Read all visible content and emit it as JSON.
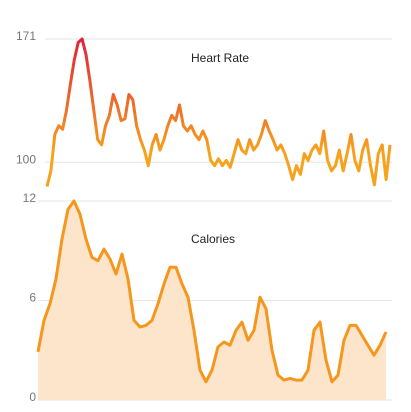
{
  "chart_data": [
    {
      "type": "line",
      "title": "Heart Rate",
      "values": [
        86,
        95,
        116,
        121,
        119,
        130,
        145,
        159,
        169,
        171,
        162,
        147,
        130,
        113,
        110,
        121,
        127,
        139,
        133,
        124,
        125,
        139,
        136,
        121,
        113,
        107,
        98,
        110,
        116,
        107,
        113,
        121,
        127,
        124,
        133,
        121,
        118,
        121,
        116,
        113,
        118,
        113,
        101,
        98,
        102,
        98,
        101,
        97,
        105,
        113,
        107,
        105,
        113,
        107,
        110,
        116,
        124,
        118,
        113,
        107,
        110,
        105,
        98,
        90,
        98,
        93,
        105,
        101,
        107,
        110,
        105,
        118,
        101,
        95,
        98,
        107,
        95,
        105,
        116,
        101,
        95,
        107,
        113,
        98,
        87,
        105,
        110,
        90,
        110
      ],
      "color_high": "#e0233c",
      "color_low": "#f7a21d",
      "ylim": [
        84,
        171
      ],
      "yticks": [
        100,
        171
      ],
      "grid": true
    },
    {
      "type": "area",
      "title": "Calories",
      "values": [
        2.9,
        4.8,
        5.8,
        7.3,
        9.7,
        11.5,
        12,
        11.2,
        9.7,
        8.6,
        8.4,
        9.1,
        8.5,
        7.6,
        8.8,
        7.3,
        4.8,
        4.4,
        4.5,
        4.8,
        5.8,
        7.0,
        8.0,
        8.0,
        7.0,
        6.2,
        4.2,
        1.8,
        1.1,
        1.8,
        3.2,
        3.5,
        3.3,
        4.2,
        4.7,
        3.6,
        4.2,
        6.2,
        5.5,
        3.0,
        1.5,
        1.2,
        1.3,
        1.2,
        1.2,
        1.8,
        4.2,
        4.7,
        2.4,
        1.1,
        1.5,
        3.6,
        4.5,
        4.5,
        3.9,
        3.3,
        2.7,
        3.3,
        4.1
      ],
      "color": "#f5961d",
      "fill": "#fde5cc",
      "ylim": [
        0,
        12
      ],
      "yticks": [
        0,
        6,
        12
      ],
      "grid": true
    }
  ]
}
